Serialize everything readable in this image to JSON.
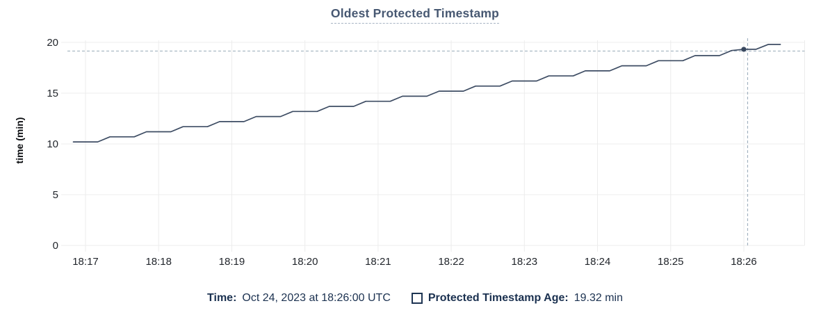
{
  "title": {
    "text": "Oldest Protected Timestamp"
  },
  "y_axis_label": "time (min)",
  "legend": {
    "time_label": "Time:",
    "time_value": "Oct 24, 2023 at 18:26:00 UTC",
    "series_checkbox_state": "unchecked",
    "series_label": "Protected Timestamp Age:",
    "series_value": "19.32 min"
  },
  "colors": {
    "series_line": "#3d4c63",
    "title": "#475872",
    "legend_text": "#1b3150",
    "gridline": "#ececec",
    "axis_text": "#22262c",
    "crosshair": "#a2b2c0",
    "hover_dot": "#39485f"
  },
  "chart_data": {
    "type": "line",
    "title": "Oldest Protected Timestamp",
    "xlabel": "",
    "ylabel": "time (min)",
    "ylim": [
      0,
      20
    ],
    "y_ticks": [
      0,
      5,
      10,
      15,
      20
    ],
    "x_ticks": [
      "18:17",
      "18:18",
      "18:19",
      "18:20",
      "18:21",
      "18:22",
      "18:23",
      "18:24",
      "18:25",
      "18:26"
    ],
    "grid": true,
    "legend_position": "bottom",
    "series": [
      {
        "name": "Protected Timestamp Age",
        "unit": "min",
        "points": [
          [
            "18:16:50",
            10.2
          ],
          [
            "18:17:00",
            10.2
          ],
          [
            "18:17:10",
            10.2
          ],
          [
            "18:17:20",
            10.7
          ],
          [
            "18:17:30",
            10.7
          ],
          [
            "18:17:40",
            10.7
          ],
          [
            "18:17:50",
            11.2
          ],
          [
            "18:18:00",
            11.2
          ],
          [
            "18:18:10",
            11.2
          ],
          [
            "18:18:20",
            11.7
          ],
          [
            "18:18:30",
            11.7
          ],
          [
            "18:18:40",
            11.7
          ],
          [
            "18:18:50",
            12.2
          ],
          [
            "18:19:00",
            12.2
          ],
          [
            "18:19:10",
            12.2
          ],
          [
            "18:19:20",
            12.7
          ],
          [
            "18:19:30",
            12.7
          ],
          [
            "18:19:40",
            12.7
          ],
          [
            "18:19:50",
            13.2
          ],
          [
            "18:20:00",
            13.2
          ],
          [
            "18:20:10",
            13.2
          ],
          [
            "18:20:20",
            13.7
          ],
          [
            "18:20:30",
            13.7
          ],
          [
            "18:20:40",
            13.7
          ],
          [
            "18:20:50",
            14.2
          ],
          [
            "18:21:00",
            14.2
          ],
          [
            "18:21:10",
            14.2
          ],
          [
            "18:21:20",
            14.7
          ],
          [
            "18:21:30",
            14.7
          ],
          [
            "18:21:40",
            14.7
          ],
          [
            "18:21:50",
            15.2
          ],
          [
            "18:22:00",
            15.2
          ],
          [
            "18:22:10",
            15.2
          ],
          [
            "18:22:20",
            15.7
          ],
          [
            "18:22:30",
            15.7
          ],
          [
            "18:22:40",
            15.7
          ],
          [
            "18:22:50",
            16.2
          ],
          [
            "18:23:00",
            16.2
          ],
          [
            "18:23:10",
            16.2
          ],
          [
            "18:23:20",
            16.7
          ],
          [
            "18:23:30",
            16.7
          ],
          [
            "18:23:40",
            16.7
          ],
          [
            "18:23:50",
            17.2
          ],
          [
            "18:24:00",
            17.2
          ],
          [
            "18:24:10",
            17.2
          ],
          [
            "18:24:20",
            17.7
          ],
          [
            "18:24:30",
            17.7
          ],
          [
            "18:24:40",
            17.7
          ],
          [
            "18:24:50",
            18.2
          ],
          [
            "18:25:00",
            18.2
          ],
          [
            "18:25:10",
            18.2
          ],
          [
            "18:25:20",
            18.7
          ],
          [
            "18:25:30",
            18.7
          ],
          [
            "18:25:40",
            18.7
          ],
          [
            "18:25:50",
            19.2
          ],
          [
            "18:26:00",
            19.32
          ],
          [
            "18:26:10",
            19.32
          ],
          [
            "18:26:20",
            19.8
          ],
          [
            "18:26:30",
            19.8
          ]
        ]
      }
    ],
    "hover_point": {
      "time": "18:26:00",
      "value": 19.32
    }
  }
}
